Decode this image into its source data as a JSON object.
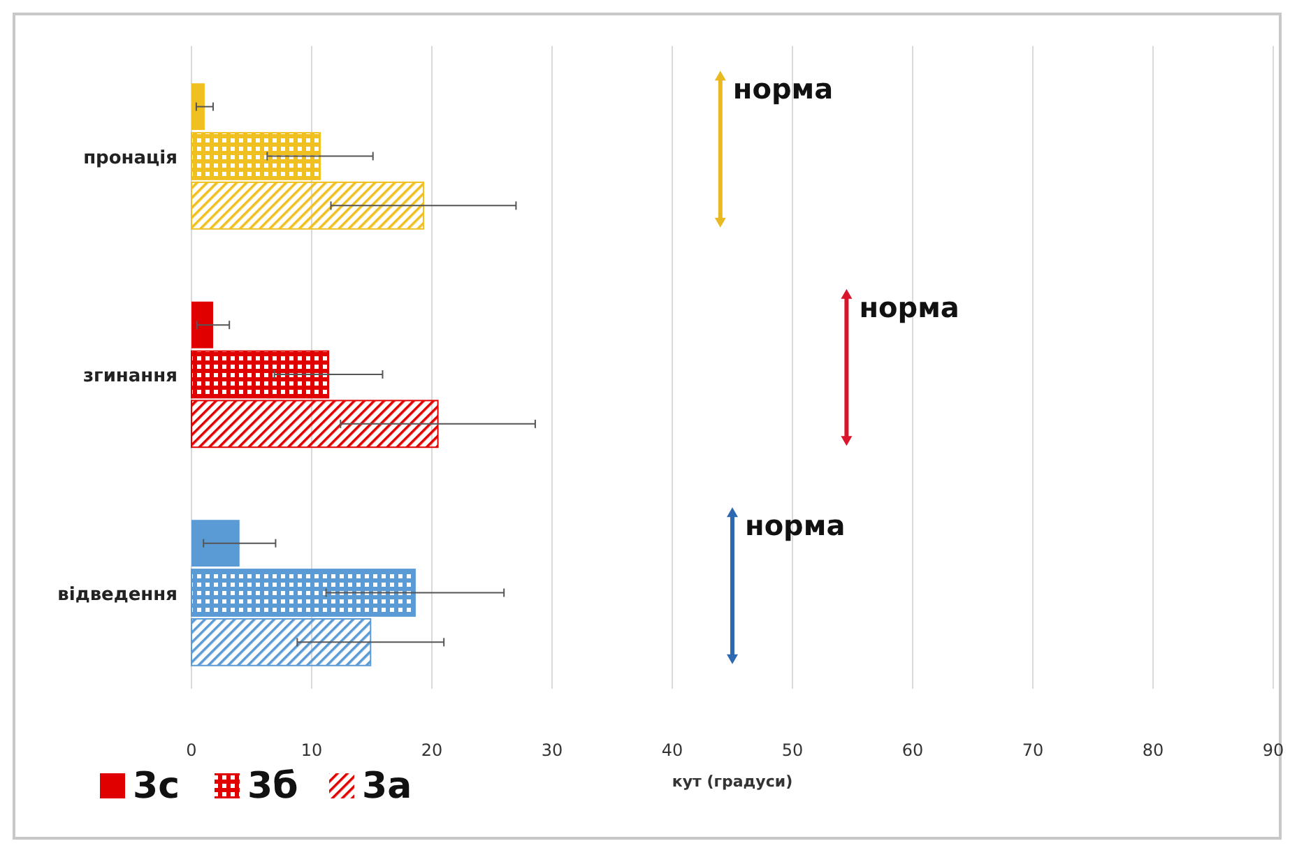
{
  "chart_data": {
    "type": "bar",
    "orientation": "horizontal",
    "xlabel": "кут (градуси)",
    "categories": [
      "пронація",
      "згинання",
      "відведення"
    ],
    "series": [
      {
        "name": "3с",
        "color": "#e00000",
        "colors": [
          "#f0c020",
          "#e00000",
          "#5b9bd5"
        ],
        "values": [
          1.1,
          1.8,
          4.0
        ],
        "errors": [
          0.7,
          1.35,
          3.0
        ]
      },
      {
        "name": "3б",
        "color": "#e00000",
        "colors": [
          "#f0c020",
          "#e00000",
          "#5b9bd5"
        ],
        "values": [
          10.7,
          11.4,
          18.6
        ],
        "errors": [
          4.4,
          4.5,
          7.4
        ]
      },
      {
        "name": "3а",
        "color": "#e00000",
        "colors": [
          "#f0c020",
          "#e00000",
          "#5b9bd5"
        ],
        "values": [
          19.3,
          20.5,
          14.9
        ],
        "errors": [
          7.7,
          8.1,
          6.1
        ]
      }
    ],
    "xlim": [
      0,
      90
    ],
    "xticks": [
      0,
      10,
      20,
      30,
      40,
      50,
      60,
      70,
      80,
      90
    ],
    "grid": "x",
    "legend": "bottom left",
    "ref_lines": [
      {
        "axis": "x",
        "value": 44,
        "label": "норма",
        "color": "#e8b923"
      },
      {
        "axis": "x",
        "value": 54.5,
        "label": "норма",
        "color": "#d9142b"
      },
      {
        "axis": "x",
        "value": 45,
        "label": "норма",
        "color": "#2e68b0"
      }
    ]
  }
}
